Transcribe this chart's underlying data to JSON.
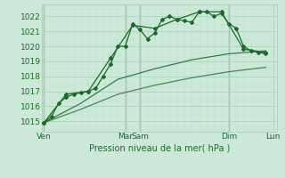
{
  "bg_color": "#cce8d8",
  "grid_color_major": "#a8d4bc",
  "grid_color_minor": "#c0e0cc",
  "line_color": "#1a6b2a",
  "xlabel": "Pression niveau de la mer( hPa )",
  "ylim": [
    1014.3,
    1022.8
  ],
  "yticks": [
    1015,
    1016,
    1017,
    1018,
    1019,
    1020,
    1021,
    1022
  ],
  "xlim": [
    -0.3,
    31.5
  ],
  "series1_x": [
    0,
    1,
    2,
    3,
    4,
    5,
    6,
    7,
    8,
    9,
    10,
    11,
    12,
    13,
    14,
    15,
    16,
    17,
    18,
    19,
    20,
    21,
    22,
    23,
    24,
    25,
    26,
    27,
    28,
    29,
    30
  ],
  "series1_y": [
    1014.9,
    1015.3,
    1016.2,
    1016.6,
    1016.8,
    1016.9,
    1017.0,
    1017.2,
    1018.0,
    1018.8,
    1020.0,
    1020.0,
    1021.5,
    1021.1,
    1020.5,
    1020.9,
    1021.8,
    1022.0,
    1021.8,
    1021.7,
    1021.6,
    1022.3,
    1022.3,
    1022.0,
    1022.2,
    1021.5,
    1021.2,
    1020.0,
    1019.7,
    1019.6,
    1019.5
  ],
  "series2_x": [
    0,
    3,
    6,
    9,
    12,
    15,
    18,
    21,
    24,
    27,
    30
  ],
  "series2_y": [
    1014.9,
    1016.8,
    1017.0,
    1019.2,
    1021.4,
    1021.2,
    1021.8,
    1022.3,
    1022.3,
    1019.8,
    1019.6
  ],
  "series3_x": [
    0,
    5,
    10,
    15,
    20,
    25,
    30
  ],
  "series3_y": [
    1014.9,
    1016.2,
    1017.8,
    1018.5,
    1019.1,
    1019.5,
    1019.7
  ],
  "series4_x": [
    0,
    5,
    10,
    15,
    20,
    25,
    30
  ],
  "series4_y": [
    1014.9,
    1015.8,
    1016.8,
    1017.4,
    1017.9,
    1018.3,
    1018.6
  ],
  "vline_positions": [
    0,
    11,
    13,
    25,
    31
  ],
  "xtick_positions": [
    0,
    11,
    13,
    25,
    31
  ],
  "xtick_labels": [
    "Ven",
    "Mar",
    "Sam",
    "Dim",
    "Lun"
  ]
}
